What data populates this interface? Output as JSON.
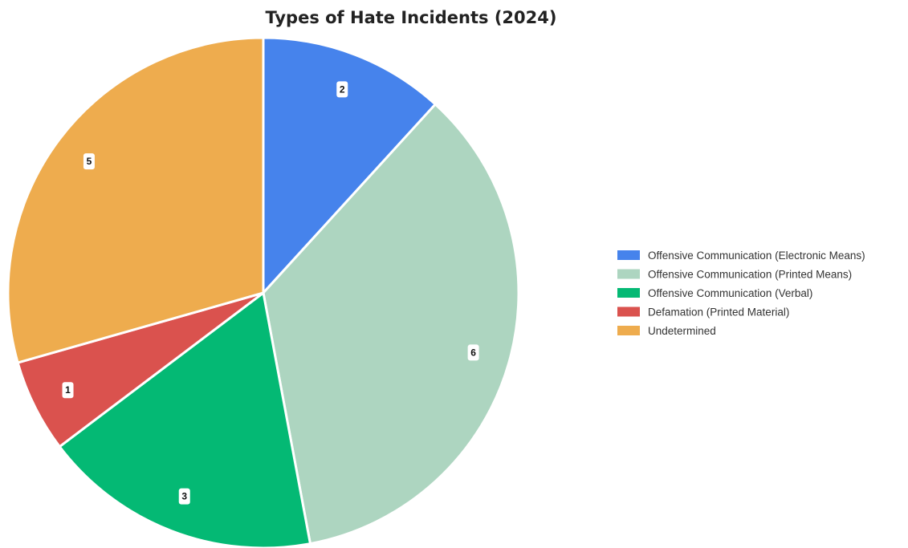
{
  "chart_data": {
    "type": "pie",
    "title": "Types of Hate Incidents (2024)",
    "legend_position": "right",
    "slices": [
      {
        "label": "Offensive Communication (Electronic Means)",
        "value": 2,
        "color": "#4683ec"
      },
      {
        "label": "Offensive Communication (Printed Means)",
        "value": 6,
        "color": "#add5c0"
      },
      {
        "label": "Offensive Communication (Verbal)",
        "value": 3,
        "color": "#04b974"
      },
      {
        "label": "Defamation (Printed Material)",
        "value": 1,
        "color": "#da524e"
      },
      {
        "label": "Undetermined",
        "value": 5,
        "color": "#eeac4e"
      }
    ]
  }
}
